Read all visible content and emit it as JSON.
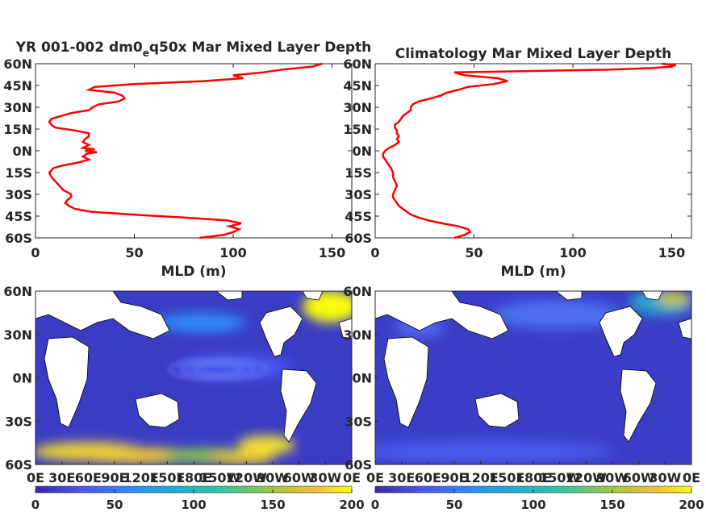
{
  "chart_data": [
    {
      "type": "line",
      "title_parts": [
        "YR 001-002 dm0",
        "e",
        "q50x Mar Mixed Layer Depth"
      ],
      "xlabel": "MLD (m)",
      "ylabel": "",
      "xlim": [
        0,
        160
      ],
      "ylim": [
        -60,
        60
      ],
      "x_ticks": [
        0,
        50,
        100,
        150
      ],
      "x_tick_labels": [
        "0",
        "50",
        "100",
        "150"
      ],
      "y_ticks": [
        -60,
        -45,
        -30,
        -15,
        0,
        15,
        30,
        45,
        60
      ],
      "y_tick_labels": [
        "60S",
        "45S",
        "30S",
        "15S",
        "0N",
        "15N",
        "30N",
        "45N",
        "60N"
      ],
      "line_color": "#ff0000",
      "series": [
        {
          "lat": [
            -60,
            -58,
            -56,
            -54,
            -52,
            -50,
            -48,
            -46,
            -44,
            -42,
            -40,
            -38,
            -36,
            -34,
            -32,
            -30,
            -27,
            -24,
            -21,
            -18,
            -15,
            -12,
            -10,
            -8,
            -6,
            -4,
            -2,
            -1,
            0,
            1,
            2,
            4,
            6,
            8,
            10,
            12,
            14,
            16,
            18,
            20,
            22,
            24,
            26,
            28,
            30,
            32,
            34,
            36,
            38,
            40,
            42,
            44,
            46,
            48,
            50,
            52,
            54,
            56,
            58,
            60
          ],
          "mld": [
            83,
            95,
            100,
            103,
            98,
            104,
            97,
            75,
            50,
            28,
            20,
            17,
            15,
            16,
            18,
            18,
            14,
            12,
            10,
            8,
            7,
            9,
            14,
            22,
            27,
            24,
            26,
            31,
            25,
            30,
            24,
            27,
            24,
            25,
            27,
            27,
            20,
            10,
            8,
            7,
            8,
            13,
            18,
            27,
            29,
            32,
            42,
            45,
            44,
            40,
            27,
            30,
            50,
            85,
            105,
            100,
            115,
            125,
            140,
            145
          ]
        }
      ]
    },
    {
      "type": "line",
      "title": "Climatology Mar Mixed Layer Depth",
      "xlabel": "MLD (m)",
      "ylabel": "",
      "xlim": [
        0,
        160
      ],
      "ylim": [
        -60,
        60
      ],
      "x_ticks": [
        0,
        50,
        100,
        150
      ],
      "x_tick_labels": [
        "0",
        "50",
        "100",
        "150"
      ],
      "y_ticks": [
        -60,
        -45,
        -30,
        -15,
        0,
        15,
        30,
        45,
        60
      ],
      "y_tick_labels": [
        "60S",
        "45S",
        "30S",
        "15S",
        "0N",
        "15N",
        "30N",
        "45N",
        "60N"
      ],
      "line_color": "#ff0000",
      "series": [
        {
          "lat": [
            -60,
            -58,
            -56,
            -54,
            -52,
            -50,
            -48,
            -46,
            -44,
            -42,
            -40,
            -38,
            -36,
            -34,
            -32,
            -30,
            -27,
            -24,
            -21,
            -18,
            -15,
            -12,
            -10,
            -8,
            -6,
            -4,
            -2,
            0,
            2,
            4,
            6,
            8,
            10,
            12,
            14,
            16,
            18,
            20,
            22,
            24,
            26,
            28,
            30,
            32,
            34,
            36,
            38,
            40,
            42,
            44,
            46,
            48,
            50,
            52,
            54,
            56,
            57,
            58,
            59,
            60
          ],
          "mld": [
            40,
            45,
            48,
            47,
            42,
            34,
            27,
            22,
            18,
            16,
            14,
            12,
            11,
            10,
            9,
            9,
            10,
            11,
            10,
            9,
            9,
            8,
            7,
            6,
            5,
            4,
            4,
            5,
            7,
            10,
            12,
            11,
            12,
            11,
            11,
            10,
            10,
            12,
            13,
            14,
            16,
            18,
            18,
            19,
            22,
            28,
            33,
            36,
            42,
            47,
            60,
            67,
            62,
            45,
            40,
            120,
            140,
            150,
            152,
            145
          ]
        }
      ]
    },
    {
      "type": "heatmap",
      "title": "",
      "xlabel": "",
      "ylabel": "",
      "x_tick_labels": [
        "0E",
        "30E",
        "60E",
        "90E",
        "120E",
        "150E",
        "180E",
        "150W",
        "120W",
        "90W",
        "60W",
        "30W",
        "0E"
      ],
      "y_tick_labels": [
        "60S",
        "30S",
        "0N",
        "30N",
        "60N"
      ],
      "colorbar": {
        "min": 0,
        "max": 200,
        "ticks": [
          "0",
          "50",
          "100",
          "150",
          "200"
        ],
        "colors": [
          "#3e26a8",
          "#4a57f2",
          "#2d8af7",
          "#19b2d0",
          "#34c89a",
          "#a1c93d",
          "#f6bb36",
          "#f9fb0e"
        ]
      },
      "field": {
        "background_level": 15,
        "features": [
          {
            "region": "Southern Ocean band",
            "level": "high (150-200)"
          },
          {
            "region": "North Atlantic subpolar",
            "level": "high (150-200)"
          },
          {
            "region": "Kuroshio extension",
            "level": "moderate (60-100)"
          },
          {
            "region": "Central tropical Pacific rings",
            "level": "moderate (40-80)"
          }
        ]
      }
    },
    {
      "type": "heatmap",
      "title": "",
      "xlabel": "",
      "ylabel": "",
      "x_tick_labels": [
        "0E",
        "30E",
        "60E",
        "90E",
        "120E",
        "150E",
        "180E",
        "150W",
        "120W",
        "90W",
        "60W",
        "30W",
        "0E"
      ],
      "y_tick_labels": [
        "60S",
        "30S",
        "0N",
        "30N",
        "60N"
      ],
      "colorbar": {
        "min": 0,
        "max": 200,
        "ticks": [
          "0",
          "50",
          "100",
          "150",
          "200"
        ],
        "colors": [
          "#3e26a8",
          "#4a57f2",
          "#2d8af7",
          "#19b2d0",
          "#34c89a",
          "#a1c93d",
          "#f6bb36",
          "#f9fb0e"
        ]
      },
      "field": {
        "background_level": 15,
        "features": [
          {
            "region": "North Atlantic subpolar",
            "level": "high (100-200)"
          },
          {
            "region": "North Pacific",
            "level": "moderate (40-80)"
          },
          {
            "region": "Southern Ocean",
            "level": "low-moderate (20-40)"
          }
        ]
      }
    }
  ]
}
